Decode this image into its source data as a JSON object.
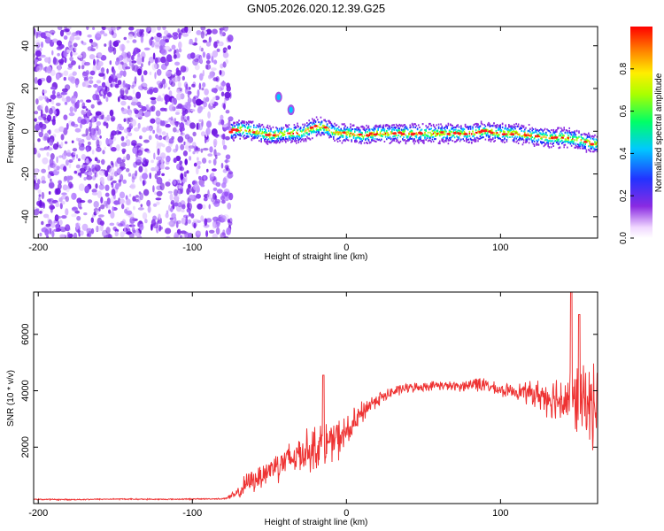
{
  "figure_title": "GN05.2026.020.12.39.G25",
  "chart_data": [
    {
      "type": "heatmap",
      "title": "GN05.2026.020.12.39.G25",
      "xlabel": "Height of straight line (km)",
      "ylabel": "Frequency (Hz)",
      "colorbar_label": "Normalized spectral amplitude",
      "xlim": [
        -203,
        163
      ],
      "ylim": [
        -50,
        49
      ],
      "xticks": [
        -200,
        -100,
        0,
        100
      ],
      "yticks": [
        -40,
        -20,
        0,
        20,
        40
      ],
      "colorbar_range": [
        0,
        1
      ],
      "colorbar_ticks": [
        0.0,
        0.2,
        0.4,
        0.6,
        0.8
      ],
      "colormap": "rainbow (white-purple-blue-cyan-green-yellow-red)",
      "noise_region_x": [
        -203,
        -75
      ],
      "signal_line": {
        "description": "Frequency ridge of the signal vs height",
        "x": [
          -75,
          -70,
          -60,
          -50,
          -40,
          -30,
          -20,
          -15,
          -10,
          -5,
          0,
          10,
          20,
          30,
          40,
          50,
          60,
          70,
          80,
          90,
          100,
          110,
          120,
          130,
          140,
          150,
          160,
          163
        ],
        "y": [
          0,
          1,
          0,
          -2,
          -1,
          -1,
          2,
          2,
          0,
          -1,
          -1,
          -2,
          -1,
          -1,
          -1,
          -1,
          -1,
          -1,
          -1,
          0,
          -1,
          -1,
          -2,
          -3,
          -3,
          -4,
          -6,
          -6
        ]
      },
      "side_features": [
        {
          "x": -44,
          "y": 16
        },
        {
          "x": -36,
          "y": 10
        }
      ]
    },
    {
      "type": "line",
      "xlabel": "Height of straight line (km)",
      "ylabel": "SNR (10 * v/v)",
      "xlim": [
        -203,
        163
      ],
      "ylim": [
        0,
        7500
      ],
      "xticks": [
        -200,
        -100,
        0,
        100
      ],
      "yticks": [
        2000,
        4000,
        6000
      ],
      "series": [
        {
          "color": "#ee3333",
          "x": [
            -203,
            -180,
            -150,
            -120,
            -100,
            -80,
            -72,
            -68,
            -65,
            -60,
            -55,
            -50,
            -45,
            -40,
            -35,
            -30,
            -25,
            -20,
            -15,
            -10,
            -5,
            0,
            5,
            10,
            15,
            20,
            25,
            30,
            35,
            40,
            50,
            60,
            70,
            80,
            85,
            90,
            100,
            110,
            120,
            130,
            140,
            150,
            160,
            163
          ],
          "y": [
            150,
            140,
            160,
            150,
            160,
            170,
            300,
            500,
            700,
            850,
            1000,
            1200,
            1400,
            1500,
            1600,
            1800,
            1900,
            2000,
            2100,
            2200,
            2300,
            2500,
            2800,
            3200,
            3500,
            3700,
            3800,
            3950,
            4050,
            4100,
            4150,
            4200,
            4150,
            4200,
            4300,
            4200,
            4000,
            4000,
            3900,
            3800,
            3700,
            3650,
            3500,
            3500
          ],
          "noise_amplitude": [
            20,
            20,
            20,
            20,
            20,
            20,
            150,
            300,
            350,
            400,
            450,
            500,
            550,
            600,
            600,
            650,
            700,
            750,
            700,
            700,
            650,
            600,
            500,
            400,
            300,
            250,
            220,
            200,
            180,
            160,
            150,
            150,
            160,
            200,
            350,
            200,
            200,
            250,
            400,
            600,
            900,
            1200,
            1300,
            1300
          ]
        }
      ],
      "peaks": [
        {
          "x": -15,
          "y": 4550
        },
        {
          "x": 146,
          "y": 7500
        },
        {
          "x": 151,
          "y": 6700
        }
      ]
    }
  ]
}
